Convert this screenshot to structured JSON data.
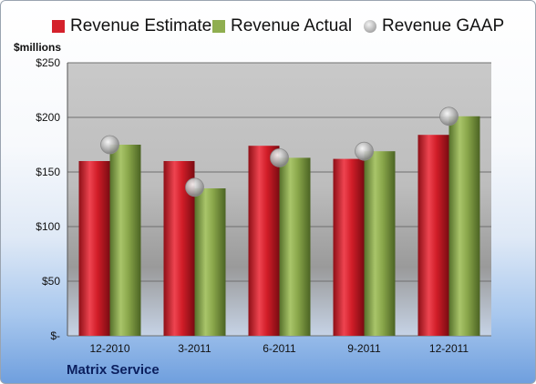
{
  "legend": [
    {
      "name": "Revenue Estimate",
      "color": "#d4212b",
      "marker": "square"
    },
    {
      "name": "Revenue Actual",
      "color": "#8fae4f",
      "marker": "square"
    },
    {
      "name": "Revenue GAAP",
      "color": "#b9b9b9",
      "marker": "circle"
    }
  ],
  "unit_label": "$millions",
  "company": "Matrix Service",
  "colors": {
    "estimate": "#d4212b",
    "actual": "#8fae4f",
    "gaap": "#b9b9b9"
  },
  "chart_data": {
    "type": "bar",
    "categories": [
      "12-2010",
      "3-2011",
      "6-2011",
      "9-2011",
      "12-2011"
    ],
    "series": [
      {
        "name": "Revenue Estimate",
        "type": "bar",
        "values": [
          160,
          160,
          174,
          162,
          184
        ]
      },
      {
        "name": "Revenue Actual",
        "type": "bar",
        "values": [
          175,
          135,
          163,
          169,
          201
        ]
      },
      {
        "name": "Revenue GAAP",
        "type": "scatter",
        "values": [
          175,
          136,
          163,
          169,
          201
        ]
      }
    ],
    "ylabel": "$millions",
    "ylim": [
      0,
      250
    ],
    "yticks": [
      0,
      50,
      100,
      150,
      200,
      250
    ],
    "ytick_labels": [
      "$-",
      "$50",
      "$100",
      "$150",
      "$200",
      "$250"
    ],
    "grid": true,
    "legend_position": "top"
  }
}
